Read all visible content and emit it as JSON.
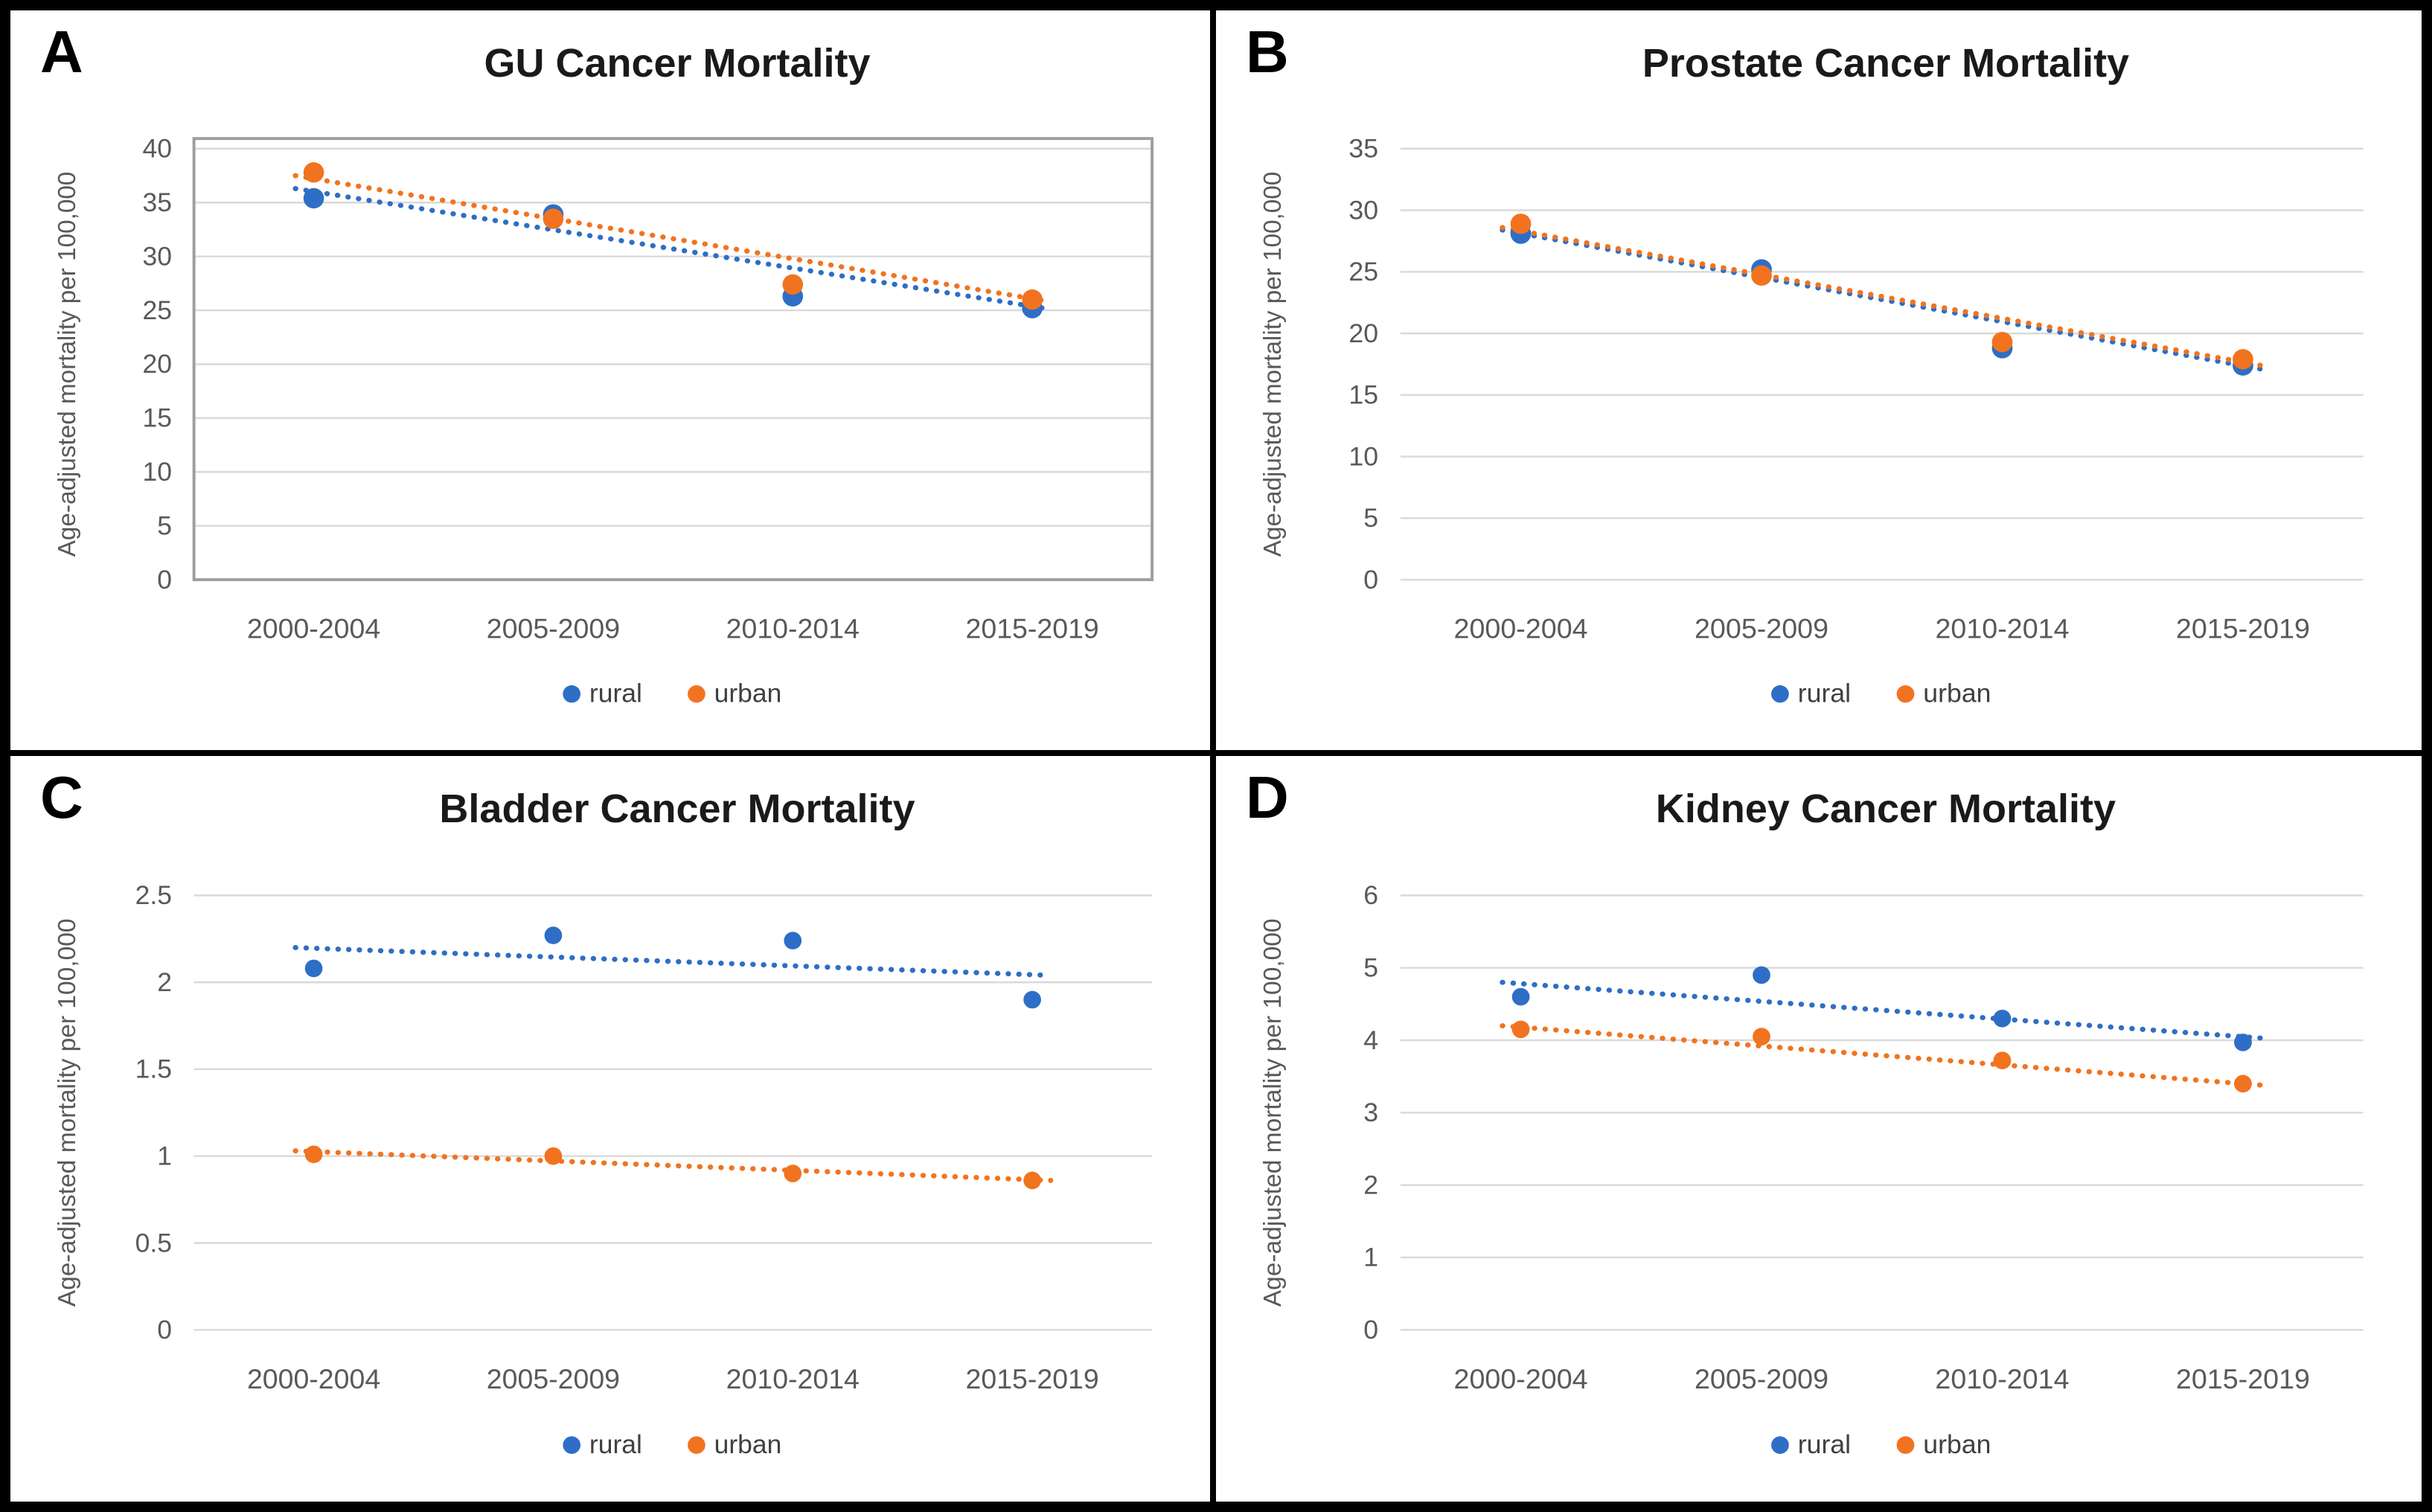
{
  "figure": {
    "ylabel": "Age-adjusted mortality per 100,000",
    "categories": [
      "2000-2004",
      "2005-2009",
      "2010-2014",
      "2015-2019"
    ],
    "legend": [
      {
        "label": "rural",
        "color": "#2e6ec6"
      },
      {
        "label": "urban",
        "color": "#f2731f"
      }
    ],
    "colors": {
      "rural": "#2e6ec6",
      "urban": "#f2731f",
      "gridline": "#d9d9d9",
      "axis_text": "#595959",
      "title_text": "#1a1a1a",
      "plot_border": "#9e9e9e",
      "frame": "#000000"
    }
  },
  "chart_data": [
    {
      "letter": "A",
      "title": "GU Cancer Mortality",
      "type": "scatter",
      "xlabel": "",
      "ylabel": "Age-adjusted mortality per 100,000",
      "categories": [
        "2000-2004",
        "2005-2009",
        "2010-2014",
        "2015-2019"
      ],
      "ylim": [
        0,
        40
      ],
      "ytick_step": 5,
      "grid": true,
      "plot_border": true,
      "legend_position": "bottom",
      "marker_radius": 14,
      "series": [
        {
          "name": "rural",
          "values": [
            35.4,
            33.9,
            26.3,
            25.2
          ]
        },
        {
          "name": "urban",
          "values": [
            37.8,
            33.5,
            27.4,
            26.0
          ]
        }
      ],
      "trendlines": [
        {
          "series": "rural",
          "style": "dotted",
          "start": 36.3,
          "end": 25.1
        },
        {
          "series": "urban",
          "style": "dotted",
          "start": 37.5,
          "end": 25.8
        }
      ]
    },
    {
      "letter": "B",
      "title": "Prostate Cancer Mortality",
      "type": "scatter",
      "xlabel": "",
      "ylabel": "Age-adjusted mortality per 100,000",
      "categories": [
        "2000-2004",
        "2005-2009",
        "2010-2014",
        "2015-2019"
      ],
      "ylim": [
        0,
        35
      ],
      "ytick_step": 5,
      "grid": true,
      "plot_border": false,
      "legend_position": "bottom",
      "marker_radius": 14,
      "series": [
        {
          "name": "rural",
          "values": [
            28.1,
            25.2,
            18.8,
            17.4
          ]
        },
        {
          "name": "urban",
          "values": [
            28.9,
            24.7,
            19.3,
            17.9
          ]
        }
      ],
      "trendlines": [
        {
          "series": "rural",
          "style": "dotted",
          "start": 28.4,
          "end": 17.1
        },
        {
          "series": "urban",
          "style": "dotted",
          "start": 28.6,
          "end": 17.4
        }
      ]
    },
    {
      "letter": "C",
      "title": "Bladder Cancer Mortality",
      "type": "scatter",
      "xlabel": "",
      "ylabel": "Age-adjusted mortality per 100,000",
      "categories": [
        "2000-2004",
        "2005-2009",
        "2010-2014",
        "2015-2019"
      ],
      "ylim": [
        0,
        2.5
      ],
      "ytick_step": 0.5,
      "grid": true,
      "plot_border": false,
      "legend_position": "bottom",
      "marker_radius": 12,
      "series": [
        {
          "name": "rural",
          "values": [
            2.08,
            2.27,
            2.24,
            1.9
          ]
        },
        {
          "name": "urban",
          "values": [
            1.01,
            1.0,
            0.9,
            0.86
          ]
        }
      ],
      "trendlines": [
        {
          "series": "rural",
          "style": "dotted",
          "start": 2.2,
          "end": 2.04
        },
        {
          "series": "urban",
          "style": "dotted",
          "start": 1.03,
          "end": 0.86
        }
      ]
    },
    {
      "letter": "D",
      "title": "Kidney Cancer Mortality",
      "type": "scatter",
      "xlabel": "",
      "ylabel": "Age-adjusted mortality per 100,000",
      "categories": [
        "2000-2004",
        "2005-2009",
        "2010-2014",
        "2015-2019"
      ],
      "ylim": [
        0,
        6
      ],
      "ytick_step": 1,
      "grid": true,
      "plot_border": false,
      "legend_position": "bottom",
      "marker_radius": 12,
      "series": [
        {
          "name": "rural",
          "values": [
            4.6,
            4.9,
            4.3,
            3.97
          ]
        },
        {
          "name": "urban",
          "values": [
            4.15,
            4.05,
            3.72,
            3.4
          ]
        }
      ],
      "trendlines": [
        {
          "series": "rural",
          "style": "dotted",
          "start": 4.8,
          "end": 4.03
        },
        {
          "series": "urban",
          "style": "dotted",
          "start": 4.2,
          "end": 3.38
        }
      ]
    }
  ]
}
